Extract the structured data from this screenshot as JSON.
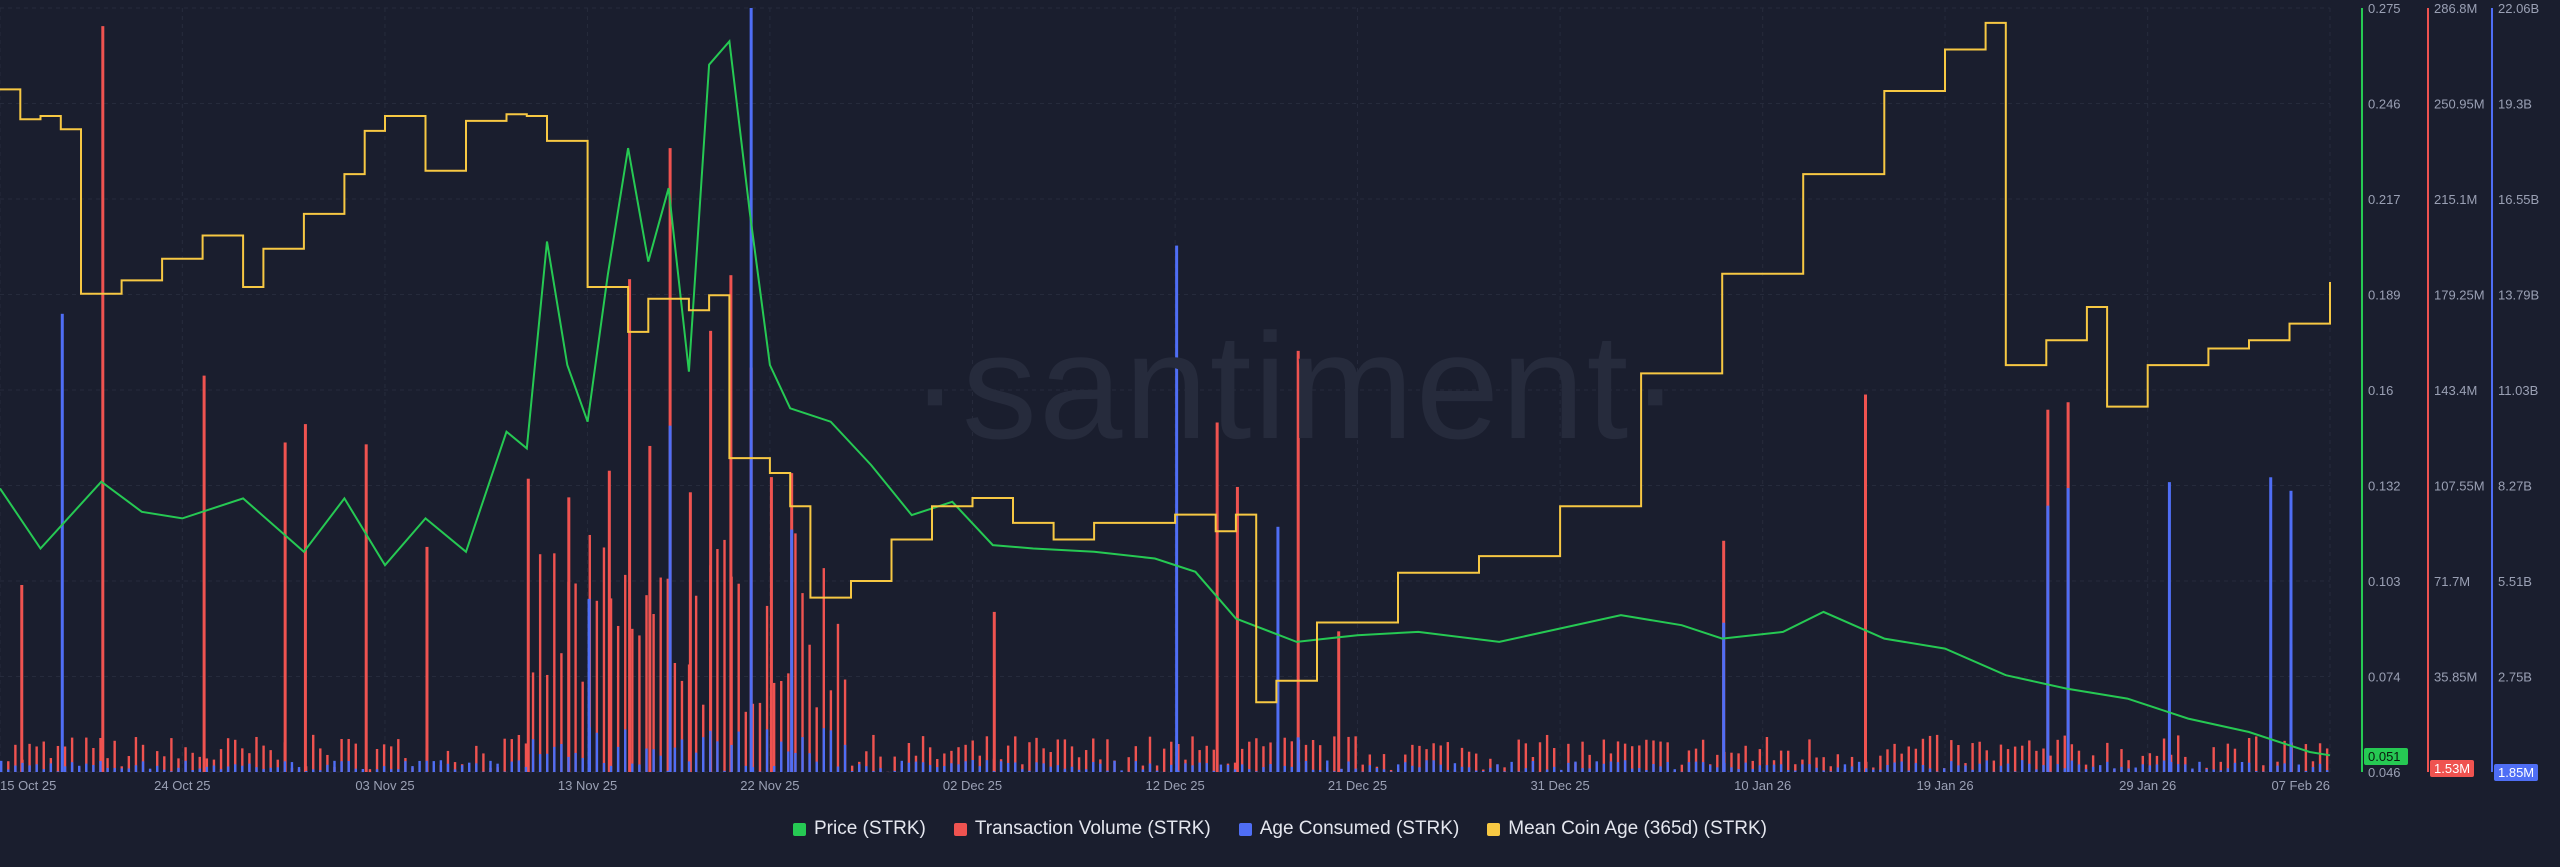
{
  "watermark": "·santiment·",
  "colors": {
    "background": "#1a1e2e",
    "price": "#26c953",
    "transaction_volume": "#ef5350",
    "age_consumed": "#4f6ef5",
    "mean_coin_age": "#f7c843",
    "grid": "#262b3c"
  },
  "legend": [
    {
      "label": "Price (STRK)",
      "color": "#26c953"
    },
    {
      "label": "Transaction Volume (STRK)",
      "color": "#ef5350"
    },
    {
      "label": "Age Consumed (STRK)",
      "color": "#4f6ef5"
    },
    {
      "label": "Mean Coin Age (365d) (STRK)",
      "color": "#f7c843"
    }
  ],
  "chart_data": {
    "type": "line",
    "grid": true,
    "legend_position": "bottom",
    "x_ticks": [
      "15 Oct 25",
      "24 Oct 25",
      "03 Nov 25",
      "13 Nov 25",
      "22 Nov 25",
      "02 Dec 25",
      "12 Dec 25",
      "21 Dec 25",
      "31 Dec 25",
      "10 Jan 26",
      "19 Jan 26",
      "29 Jan 26",
      "07 Feb 26"
    ],
    "axes": {
      "price": {
        "ticks": [
          "0.275",
          "0.246",
          "0.217",
          "0.189",
          "0.16",
          "0.132",
          "0.103",
          "0.074",
          "0.046"
        ],
        "ylim": [
          0.046,
          0.275
        ],
        "current": "0.051"
      },
      "transaction_volume": {
        "ticks": [
          "286.8M",
          "250.95M",
          "215.1M",
          "179.25M",
          "143.4M",
          "107.55M",
          "71.7M",
          "35.85M"
        ],
        "ylim": [
          0,
          286.8
        ],
        "current": "1.53M"
      },
      "age_consumed": {
        "ticks": [
          "22.06B",
          "19.3B",
          "16.55B",
          "13.79B",
          "11.03B",
          "8.27B",
          "5.51B",
          "2.75B"
        ],
        "ylim": [
          0,
          22.06
        ],
        "current": "1.85M"
      }
    },
    "price_series": {
      "name": "Price (STRK)",
      "x": [
        "15 Oct",
        "17 Oct",
        "20 Oct",
        "22 Oct",
        "24 Oct",
        "27 Oct",
        "30 Oct",
        "01 Nov",
        "03 Nov",
        "05 Nov",
        "07 Nov",
        "09 Nov",
        "10 Nov",
        "11 Nov",
        "12 Nov",
        "13 Nov",
        "14 Nov",
        "15 Nov",
        "16 Nov",
        "17 Nov",
        "18 Nov",
        "19 Nov",
        "20 Nov",
        "21 Nov",
        "22 Nov",
        "23 Nov",
        "25 Nov",
        "27 Nov",
        "29 Nov",
        "01 Dec",
        "03 Dec",
        "05 Dec",
        "08 Dec",
        "11 Dec",
        "13 Dec",
        "15 Dec",
        "18 Dec",
        "21 Dec",
        "24 Dec",
        "28 Dec",
        "31 Dec",
        "03 Jan",
        "06 Jan",
        "08 Jan",
        "11 Jan",
        "13 Jan",
        "16 Jan",
        "19 Jan",
        "22 Jan",
        "25 Jan",
        "28 Jan",
        "31 Jan",
        "03 Feb",
        "06 Feb",
        "07 Feb"
      ],
      "values": [
        0.131,
        0.113,
        0.133,
        0.124,
        0.122,
        0.128,
        0.112,
        0.128,
        0.108,
        0.122,
        0.112,
        0.148,
        0.143,
        0.205,
        0.168,
        0.151,
        0.195,
        0.233,
        0.199,
        0.221,
        0.166,
        0.258,
        0.265,
        0.214,
        0.168,
        0.155,
        0.151,
        0.138,
        0.123,
        0.127,
        0.114,
        0.113,
        0.112,
        0.11,
        0.106,
        0.092,
        0.085,
        0.087,
        0.088,
        0.085,
        0.089,
        0.093,
        0.09,
        0.086,
        0.088,
        0.094,
        0.086,
        0.083,
        0.075,
        0.071,
        0.068,
        0.062,
        0.058,
        0.052,
        0.051
      ]
    },
    "mean_coin_age_series": {
      "name": "Mean Coin Age (365d) (STRK)",
      "x": [
        "15 Oct",
        "16 Oct",
        "17 Oct",
        "18 Oct",
        "19 Oct",
        "21 Oct",
        "23 Oct",
        "25 Oct",
        "27 Oct",
        "28 Oct",
        "30 Oct",
        "01 Nov",
        "02 Nov",
        "03 Nov",
        "05 Nov",
        "07 Nov",
        "09 Nov",
        "10 Nov",
        "11 Nov",
        "13 Nov",
        "15 Nov",
        "16 Nov",
        "18 Nov",
        "19 Nov",
        "20 Nov",
        "22 Nov",
        "23 Nov",
        "24 Nov",
        "26 Nov",
        "28 Nov",
        "30 Nov",
        "02 Dec",
        "04 Dec",
        "06 Dec",
        "08 Dec",
        "10 Dec",
        "12 Dec",
        "14 Dec",
        "15 Dec",
        "16 Dec",
        "17 Dec",
        "19 Dec",
        "23 Dec",
        "27 Dec",
        "31 Dec",
        "04 Jan",
        "08 Jan",
        "12 Jan",
        "16 Jan",
        "19 Jan",
        "21 Jan",
        "22 Jan",
        "24 Jan",
        "26 Jan",
        "27 Jan",
        "29 Jan",
        "01 Feb",
        "03 Feb",
        "05 Feb",
        "07 Feb"
      ],
      "values": [
        4.11,
        3.93,
        3.95,
        3.87,
        2.88,
        2.96,
        3.09,
        3.23,
        2.92,
        3.15,
        3.36,
        3.6,
        3.86,
        3.95,
        3.62,
        3.92,
        3.96,
        3.95,
        3.8,
        2.92,
        2.65,
        2.85,
        2.78,
        2.87,
        1.89,
        1.8,
        1.6,
        1.05,
        1.15,
        1.4,
        1.6,
        1.65,
        1.5,
        1.4,
        1.5,
        1.5,
        1.55,
        1.45,
        1.55,
        0.42,
        0.55,
        0.9,
        1.2,
        1.3,
        1.6,
        2.4,
        3.0,
        3.6,
        4.1,
        4.35,
        4.51,
        2.45,
        2.6,
        2.8,
        2.2,
        2.45,
        2.55,
        2.6,
        2.7,
        2.95
      ]
    },
    "transaction_volume_series": {
      "name": "Transaction Volume (STRK)",
      "x": [
        "16 Oct",
        "20 Oct",
        "25 Oct",
        "29 Oct",
        "30 Oct",
        "02 Nov",
        "05 Nov",
        "10 Nov",
        "12 Nov",
        "14 Nov",
        "15 Nov",
        "16 Nov",
        "17 Nov",
        "18 Nov",
        "19 Nov",
        "20 Nov",
        "21 Nov",
        "22 Nov",
        "23 Nov",
        "03 Dec",
        "14 Dec",
        "15 Dec",
        "18 Dec",
        "20 Dec",
        "08 Jan",
        "15 Jan",
        "24 Jan",
        "25 Jan",
        "05 Feb"
      ],
      "values": [
        70.2,
        280.0,
        148.8,
        123.7,
        130.6,
        123.0,
        84.5,
        110.1,
        103.1,
        113.1,
        185.0,
        122.4,
        234.2,
        105.0,
        165.6,
        186.5,
        151.8,
        110.7,
        112.2,
        60.1,
        131.2,
        107.0,
        158.1,
        52.8,
        86.8,
        141.7,
        136.0,
        138.8,
        48.0
      ]
    },
    "age_consumed_series": {
      "name": "Age Consumed (STRK)",
      "x": [
        "18 Oct",
        "13 Nov",
        "17 Nov",
        "21 Nov",
        "23 Nov",
        "12 Dec",
        "17 Dec",
        "18 Dec",
        "08 Jan",
        "24 Jan",
        "25 Jan",
        "30 Jan",
        "04 Feb",
        "05 Feb"
      ],
      "values": [
        13.23,
        5.0,
        10.0,
        22.06,
        7.0,
        15.2,
        7.08,
        1.0,
        4.31,
        7.69,
        8.2,
        8.37,
        8.51,
        8.12
      ]
    }
  }
}
